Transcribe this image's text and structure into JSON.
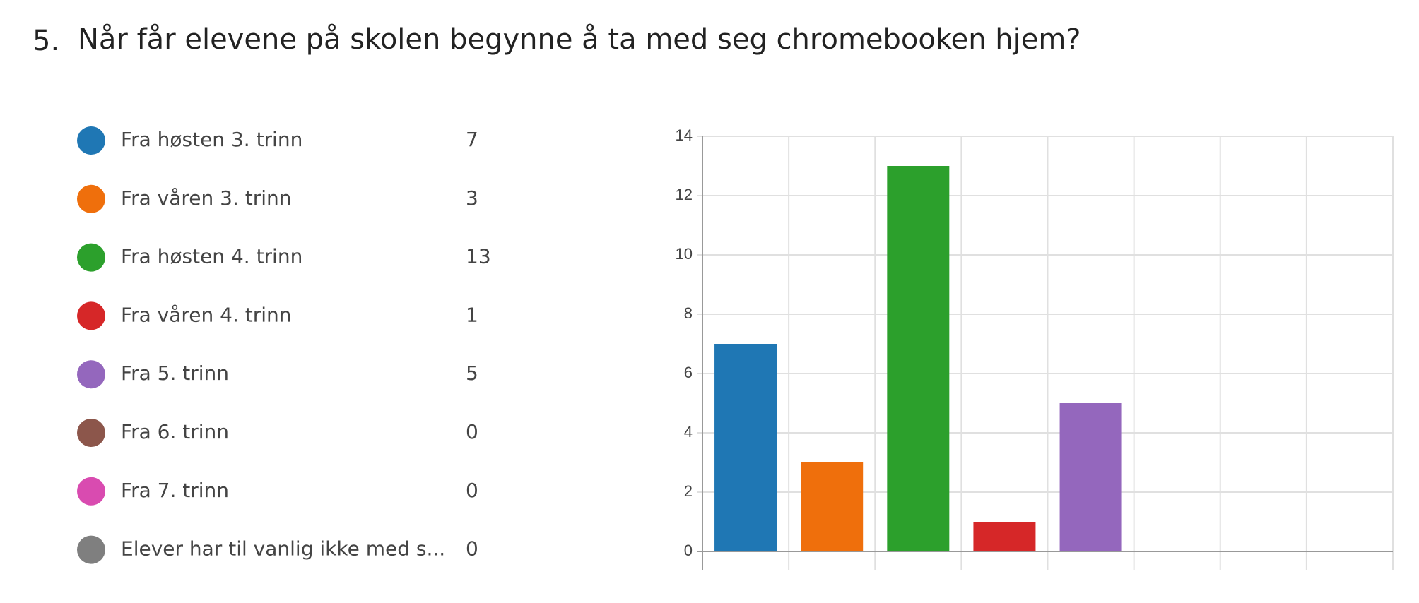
{
  "chart_data": {
    "type": "bar",
    "question_number": "5.",
    "title": "Når får elevene på skolen begynne å ta med seg chromebooken hjem?",
    "categories": [
      "Fra høsten 3. trinn",
      "Fra våren 3. trinn",
      "Fra høsten 4. trinn",
      "Fra våren 4. trinn",
      "Fra 5. trinn",
      "Fra 6. trinn",
      "Fra 7. trinn",
      "Elever har til vanlig ikke med s..."
    ],
    "values": [
      7,
      3,
      13,
      1,
      5,
      0,
      0,
      0
    ],
    "colors": [
      "#1f77b4",
      "#ef6f0c",
      "#2ca02c",
      "#d62728",
      "#9467bd",
      "#8c564b",
      "#d94bb0",
      "#7f7f7f"
    ],
    "ylim": [
      0,
      14
    ],
    "yticks": [
      0,
      2,
      4,
      6,
      8,
      10,
      12,
      14
    ],
    "grid": true
  }
}
